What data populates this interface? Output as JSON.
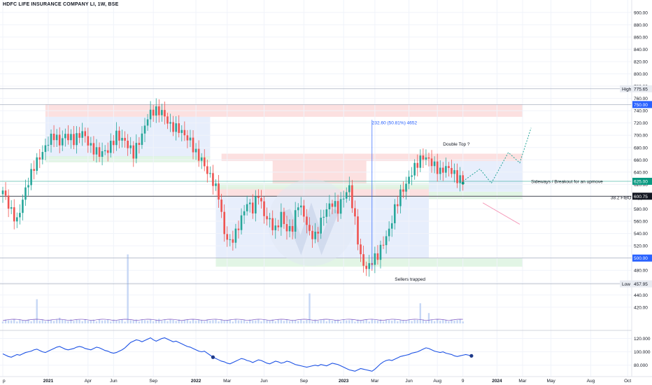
{
  "header": {
    "title": "HDFC LIFE INSURANCE COMPANY LI, 1W, BSE"
  },
  "colors": {
    "up": "#26a69a",
    "down": "#ef5350",
    "volume": "#c6d7f5",
    "zone_red": "#fbdada",
    "zone_green": "#ddf3e0",
    "zone_blue": "#e3ebfc",
    "accent": "#2962ff",
    "price_label": "#089981",
    "axis_text": "#131722"
  },
  "chart_data": {
    "type": "candlestick",
    "yaxis": {
      "ylim": [
        405,
        910
      ],
      "ticks": [
        "900.00",
        "880.00",
        "860.00",
        "840.00",
        "820.00",
        "800.00",
        "780.00",
        "760.00",
        "740.00",
        "720.00",
        "700.00",
        "680.00",
        "660.00",
        "640.00",
        "620.00",
        "600.00",
        "580.00",
        "560.00",
        "540.00",
        "520.00",
        "500.00",
        "480.00",
        "460.00",
        "440.00",
        "420.00"
      ],
      "tick_values": [
        900,
        880,
        860,
        840,
        820,
        800,
        780,
        760,
        740,
        720,
        700,
        680,
        660,
        640,
        620,
        600,
        580,
        560,
        540,
        520,
        500,
        480,
        460,
        440,
        420
      ]
    },
    "xaxis": {
      "labels": [
        "p",
        "2021",
        "Apr",
        "Jun",
        "Sep",
        "2022",
        "Mar",
        "Jun",
        "Sep",
        "2023",
        "Mar",
        "Jun",
        "Aug",
        "9",
        "2024",
        "Mar",
        "May",
        "Aug",
        "Oct"
      ],
      "label_weeks": [
        0,
        16,
        30,
        39,
        53,
        68,
        79,
        92,
        106,
        120,
        131,
        143,
        153,
        162,
        174,
        183,
        193,
        207,
        220
      ]
    },
    "price_labels": [
      {
        "name": "High",
        "value": 775.65,
        "text": "775.65"
      },
      {
        "name": "",
        "value": 750.0,
        "text": "750.00"
      },
      {
        "name": "",
        "value": 625.0,
        "text": "625.00"
      },
      {
        "name": "",
        "value": 600.75,
        "text": "600.75"
      },
      {
        "name": "",
        "value": 500.0,
        "text": "500.00"
      },
      {
        "name": "Low",
        "value": 457.95,
        "text": "457.95"
      }
    ],
    "horizontal_lines": [
      775.65,
      750,
      625,
      600.75,
      500,
      457.95
    ],
    "annotations": [
      {
        "text": "232.60 (50.81%) 4652",
        "week": 130,
        "value": 718
      },
      {
        "text": "Double Top ?",
        "week": 155,
        "value": 683
      },
      {
        "text": "Sideways / Breakout for an upmove",
        "week": 186,
        "value": 622
      },
      {
        "text": "38.2 FIBO Support",
        "week": 214,
        "value": 596
      },
      {
        "text": "Sellers trapped",
        "week": 138,
        "value": 463
      }
    ],
    "zones": [
      {
        "color": "red",
        "w1": 15,
        "w2": 183,
        "y1": 730,
        "y2": 750
      },
      {
        "color": "blue",
        "w1": 15,
        "w2": 73,
        "y1": 664,
        "y2": 730
      },
      {
        "color": "green",
        "w1": 15,
        "w2": 73,
        "y1": 656,
        "y2": 666
      },
      {
        "color": "red",
        "w1": 77,
        "w2": 183,
        "y1": 658,
        "y2": 670
      },
      {
        "color": "red",
        "w1": 95,
        "w2": 128,
        "y1": 620,
        "y2": 660
      },
      {
        "color": "red",
        "w1": 75,
        "w2": 150,
        "y1": 600,
        "y2": 616
      },
      {
        "color": "green",
        "w1": 75,
        "w2": 183,
        "y1": 612,
        "y2": 622
      },
      {
        "color": "green",
        "w1": 150,
        "w2": 183,
        "y1": 596,
        "y2": 608
      },
      {
        "color": "blue",
        "w1": 75,
        "w2": 150,
        "y1": 500,
        "y2": 600
      },
      {
        "color": "blue",
        "w1": 150,
        "w2": 183,
        "y1": 608,
        "y2": 658
      },
      {
        "color": "green",
        "w1": 75,
        "w2": 183,
        "y1": 486,
        "y2": 500
      }
    ],
    "oscillator": {
      "ylim": [
        65,
        130
      ],
      "ticks": [
        "120.000",
        "100.000",
        "80.000"
      ],
      "tick_values": [
        120,
        100,
        80
      ],
      "values": [
        97,
        95,
        93,
        92,
        94,
        96,
        95,
        97,
        99,
        100,
        101,
        103,
        104,
        102,
        100,
        99,
        101,
        103,
        105,
        107,
        108,
        106,
        104,
        103,
        104,
        105,
        107,
        108,
        107,
        105,
        104,
        103,
        105,
        107,
        106,
        104,
        102,
        101,
        99,
        98,
        99,
        101,
        103,
        106,
        110,
        114,
        116,
        118,
        117,
        115,
        117,
        119,
        121,
        118,
        116,
        118,
        120,
        121,
        119,
        117,
        115,
        116,
        114,
        112,
        110,
        108,
        107,
        105,
        103,
        101,
        100,
        101,
        98,
        95,
        92,
        90,
        88,
        86,
        85,
        83,
        82,
        84,
        86,
        88,
        90,
        89,
        87,
        86,
        84,
        86,
        88,
        87,
        85,
        83,
        82,
        84,
        86,
        85,
        83,
        84,
        86,
        85,
        83,
        81,
        80,
        79,
        78,
        77,
        78,
        79,
        80,
        79,
        81,
        80,
        79,
        81,
        83,
        82,
        81,
        79,
        77,
        75,
        73,
        72,
        71,
        73,
        75,
        74,
        73,
        72,
        71,
        74,
        78,
        82,
        85,
        87,
        88,
        87,
        89,
        91,
        93,
        94,
        95,
        96,
        98,
        99,
        100,
        102,
        104,
        106,
        105,
        103,
        101,
        100,
        99,
        100,
        98,
        97,
        96,
        94,
        93,
        94,
        95,
        96,
        95,
        94
      ],
      "start_week": 0
    },
    "volume_max": 140
  }
}
